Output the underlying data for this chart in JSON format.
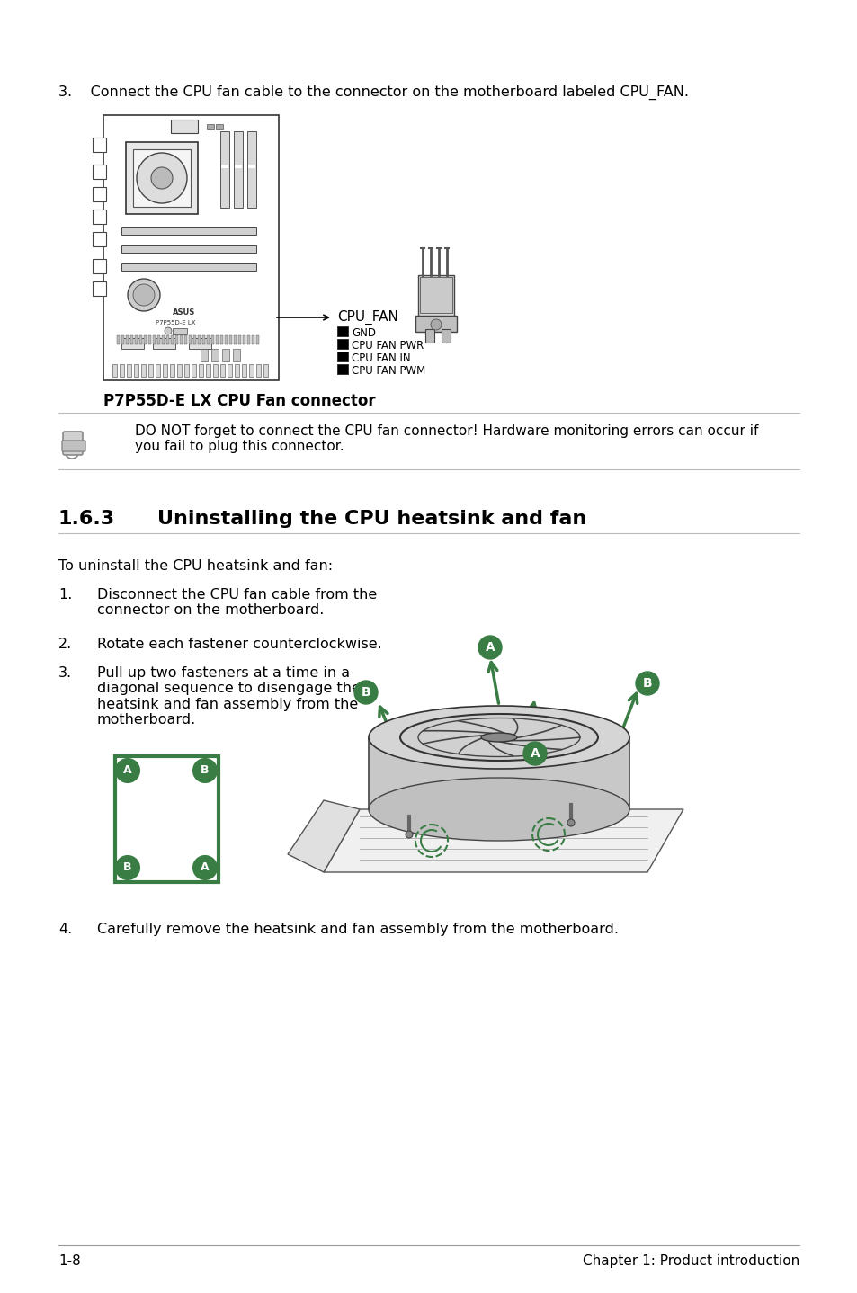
{
  "bg_color": "#ffffff",
  "footer_text_left": "1-8",
  "footer_text_right": "Chapter 1: Product introduction",
  "step3_text": "3.    Connect the CPU fan cable to the connector on the motherboard labeled CPU_FAN.",
  "caption_text": "P7P55D-E LX CPU Fan connector",
  "note_text": "DO NOT forget to connect the CPU fan connector! Hardware monitoring errors can occur if\nyou fail to plug this connector.",
  "cpu_fan_label": "CPU_FAN",
  "cpu_fan_pins": [
    "GND",
    "CPU FAN PWR",
    "CPU FAN IN",
    "CPU FAN PWM"
  ],
  "section_title_num": "1.6.3",
  "section_title_text": "Uninstalling the CPU heatsink and fan",
  "intro_text": "To uninstall the CPU heatsink and fan:",
  "step1": "1.    Disconnect the CPU fan cable from the\n      connector on the motherboard.",
  "step2": "2.    Rotate each fastener counterclockwise.",
  "step3b": "3.    Pull up two fasteners at a time in a\n      diagonal sequence to disengage the\n      heatsink and fan assembly from the\n      motherboard.",
  "step4_text": "4.    Carefully remove the heatsink and fan assembly from the motherboard.",
  "green_color": "#3a7d44",
  "red_color": "#cc2222",
  "lc": "#222222",
  "gray1": "#888888",
  "gray2": "#cccccc",
  "gray3": "#eeeeee",
  "gray4": "#555555",
  "mb_border": "#333333"
}
